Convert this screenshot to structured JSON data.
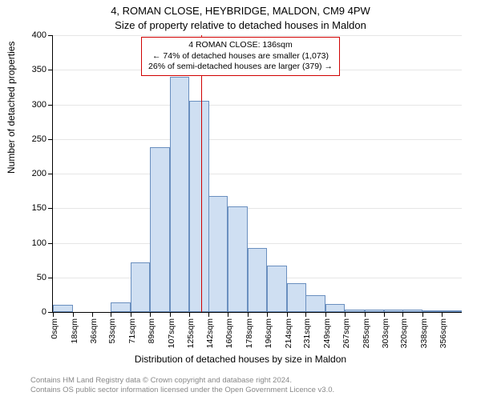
{
  "title_line1": "4, ROMAN CLOSE, HEYBRIDGE, MALDON, CM9 4PW",
  "title_line2": "Size of property relative to detached houses in Maldon",
  "annotation": {
    "line1": "4 ROMAN CLOSE: 136sqm",
    "line2": "← 74% of detached houses are smaller (1,073)",
    "line3": "26% of semi-detached houses are larger (379) →"
  },
  "ylabel": "Number of detached properties",
  "xlabel": "Distribution of detached houses by size in Maldon",
  "footer_line1": "Contains HM Land Registry data © Crown copyright and database right 2024.",
  "footer_line2": "Contains OS public sector information licensed under the Open Government Licence v3.0.",
  "histogram": {
    "type": "histogram",
    "bar_fill": "#cfdff2",
    "bar_stroke": "#6a8fbf",
    "reference_line_color": "#d00000",
    "reference_value_sqm": 136,
    "background_color": "#ffffff",
    "grid_color": "#e6e6e6",
    "ylim": [
      0,
      400
    ],
    "ytick_step": 50,
    "yticks": [
      0,
      50,
      100,
      150,
      200,
      250,
      300,
      350,
      400
    ],
    "xlim_sqm": [
      0,
      374
    ],
    "xtick_labels": [
      "0sqm",
      "18sqm",
      "36sqm",
      "53sqm",
      "71sqm",
      "89sqm",
      "107sqm",
      "125sqm",
      "142sqm",
      "160sqm",
      "178sqm",
      "196sqm",
      "214sqm",
      "231sqm",
      "249sqm",
      "267sqm",
      "285sqm",
      "303sqm",
      "320sqm",
      "338sqm",
      "356sqm"
    ],
    "xtick_positions_sqm": [
      0,
      18,
      36,
      53,
      71,
      89,
      107,
      125,
      142,
      160,
      178,
      196,
      214,
      231,
      249,
      267,
      285,
      303,
      320,
      338,
      356
    ],
    "bin_width_sqm": 18,
    "bins_start_sqm": [
      0,
      18,
      36,
      53,
      71,
      89,
      107,
      125,
      142,
      160,
      178,
      196,
      214,
      231,
      249,
      267,
      285,
      303,
      320,
      338,
      356
    ],
    "counts": [
      10,
      0,
      0,
      14,
      72,
      238,
      340,
      305,
      168,
      153,
      93,
      67,
      42,
      24,
      12,
      4,
      4,
      4,
      3,
      2,
      2
    ],
    "title_fontsize": 13,
    "label_fontsize": 12,
    "tick_fontsize": 11,
    "annotation_fontsize": 10.5
  }
}
